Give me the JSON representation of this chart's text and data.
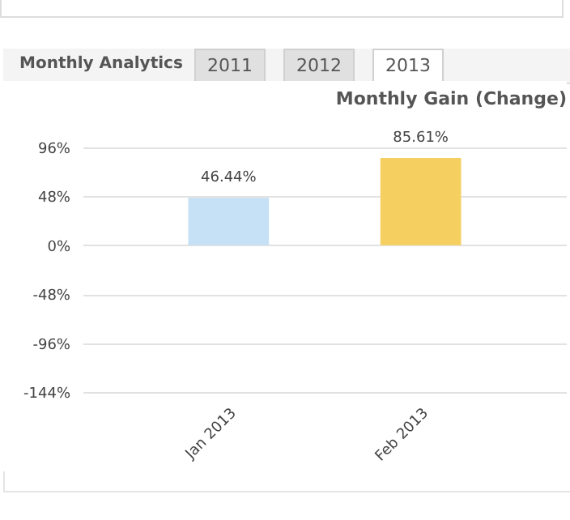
{
  "chart_data": {
    "type": "bar",
    "title": "Monthly Gain (Change)",
    "annotations": [
      "Monthly Analytics",
      "2011",
      "2012",
      "2013"
    ],
    "categories": [
      "Jan 2013",
      "Feb 2013"
    ],
    "values": [
      46.44,
      85.61
    ],
    "colors": [
      "#c6e0f5",
      "#f5cf5f"
    ],
    "value_labels": [
      "46.44%",
      "85.61%"
    ],
    "ylim": [
      -144,
      96
    ],
    "yticks": [
      {
        "value": 96,
        "label": "96%"
      },
      {
        "value": 48,
        "label": "48%"
      },
      {
        "value": 0,
        "label": "0%"
      },
      {
        "value": -48,
        "label": "-48%"
      },
      {
        "value": -96,
        "label": "-96%"
      },
      {
        "value": -144,
        "label": "-144%"
      }
    ],
    "grid": "y"
  }
}
